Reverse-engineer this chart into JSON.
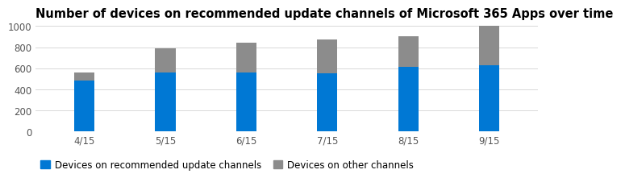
{
  "title": "Number of devices on recommended update channels of Microsoft 365 Apps over time",
  "categories": [
    "4/15",
    "5/15",
    "6/15",
    "7/15",
    "8/15",
    "9/15"
  ],
  "recommended": [
    480,
    560,
    560,
    555,
    610,
    625
  ],
  "other": [
    80,
    230,
    285,
    315,
    290,
    375
  ],
  "color_recommended": "#0078D4",
  "color_other": "#8C8C8C",
  "ylim": [
    0,
    1000
  ],
  "yticks": [
    0,
    200,
    400,
    600,
    800,
    1000
  ],
  "legend_labels": [
    "Devices on recommended update channels",
    "Devices on other channels"
  ],
  "background_color": "#FFFFFF",
  "title_fontsize": 10.5,
  "tick_fontsize": 8.5,
  "legend_fontsize": 8.5,
  "bar_width": 0.25
}
